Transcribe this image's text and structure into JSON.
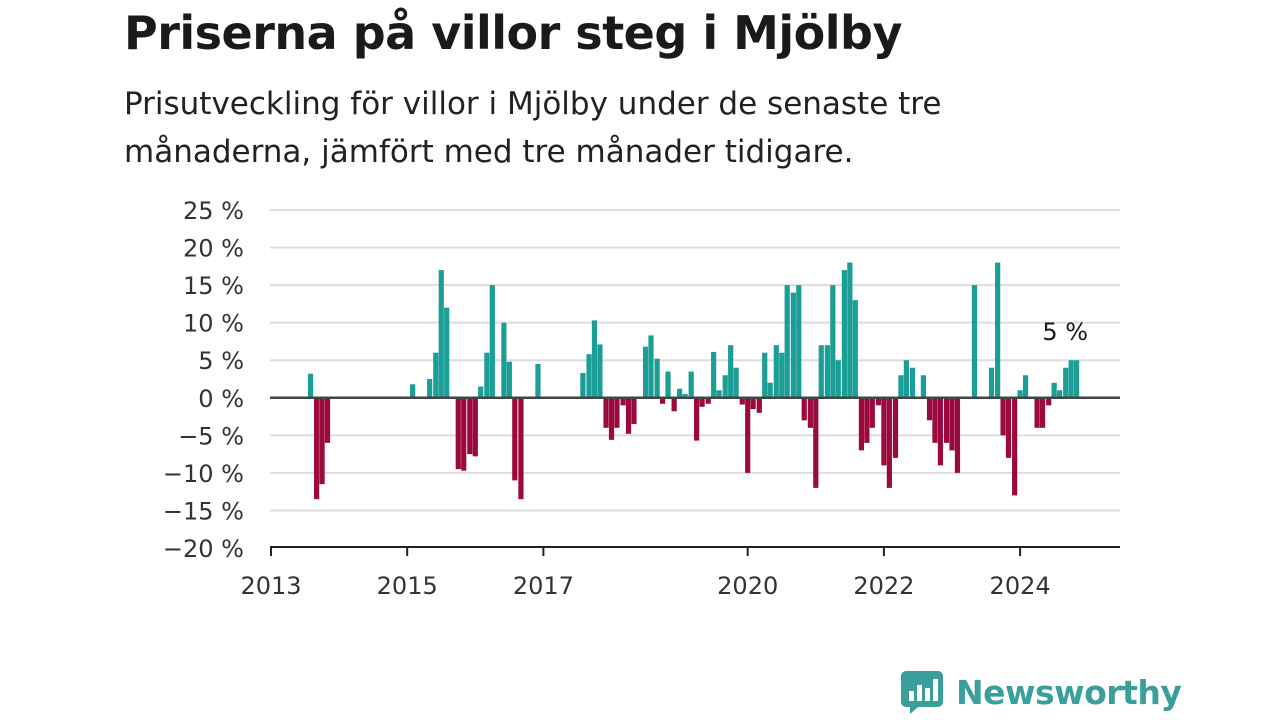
{
  "header": {
    "title": "Priserna på villor steg i Mjölby",
    "subtitle": "Prisutveckling för villor i Mjölby under de senaste tre månaderna, jämfört med tre månader tidigare."
  },
  "brand": {
    "name": "Newsworthy",
    "logo_icon": "bar-chart-speech-bubble-icon",
    "color": "#3a9f9a"
  },
  "chart_data": {
    "type": "bar",
    "title": "Priserna på villor steg i Mjölby",
    "subtitle": "Prisutveckling för villor i Mjölby under de senaste tre månaderna, jämfört med tre månader tidigare.",
    "xlabel": "",
    "ylabel": "",
    "ylim": [
      -20,
      25
    ],
    "y_ticks": [
      25,
      20,
      15,
      10,
      5,
      0,
      -5,
      -10,
      -15,
      -20
    ],
    "y_tick_labels": [
      "25 %",
      "20 %",
      "15 %",
      "10 %",
      "5 %",
      "0 %",
      "−5 %",
      "−10 %",
      "−15 %",
      "−20 %"
    ],
    "x_ticks": [
      2013,
      2015,
      2017,
      2020,
      2022,
      2024
    ],
    "x_tick_labels": [
      "2013",
      "2015",
      "2017",
      "2020",
      "2022",
      "2024"
    ],
    "x_unit": "year",
    "grid": true,
    "colors": {
      "positive": "#1a9e96",
      "negative": "#9b0a3e",
      "grid": "#dddddd",
      "axis": "#444444"
    },
    "annotation": {
      "text": "5 %",
      "x": 2024.75,
      "y": 5
    },
    "bars": [
      {
        "x": 2013.58,
        "y": 3.2
      },
      {
        "x": 2013.67,
        "y": -13.5
      },
      {
        "x": 2013.75,
        "y": -11.5
      },
      {
        "x": 2013.83,
        "y": -6.0
      },
      {
        "x": 2015.08,
        "y": 1.8
      },
      {
        "x": 2015.33,
        "y": 2.5
      },
      {
        "x": 2015.42,
        "y": 6.0
      },
      {
        "x": 2015.5,
        "y": 17.0
      },
      {
        "x": 2015.58,
        "y": 12.0
      },
      {
        "x": 2015.75,
        "y": -9.5
      },
      {
        "x": 2015.83,
        "y": -9.7
      },
      {
        "x": 2015.92,
        "y": -7.5
      },
      {
        "x": 2016.0,
        "y": -7.8
      },
      {
        "x": 2016.08,
        "y": 1.5
      },
      {
        "x": 2016.17,
        "y": 6.0
      },
      {
        "x": 2016.25,
        "y": 15.0
      },
      {
        "x": 2016.42,
        "y": 10.0
      },
      {
        "x": 2016.5,
        "y": 4.8
      },
      {
        "x": 2016.58,
        "y": -11.0
      },
      {
        "x": 2016.67,
        "y": -13.5
      },
      {
        "x": 2016.92,
        "y": 4.5
      },
      {
        "x": 2017.58,
        "y": 3.3
      },
      {
        "x": 2017.67,
        "y": 5.8
      },
      {
        "x": 2017.75,
        "y": 10.3
      },
      {
        "x": 2017.83,
        "y": 7.1
      },
      {
        "x": 2017.92,
        "y": -4.0
      },
      {
        "x": 2018.0,
        "y": -5.6
      },
      {
        "x": 2018.08,
        "y": -4.0
      },
      {
        "x": 2018.17,
        "y": -1.0
      },
      {
        "x": 2018.25,
        "y": -4.8
      },
      {
        "x": 2018.33,
        "y": -3.5
      },
      {
        "x": 2018.5,
        "y": 6.8
      },
      {
        "x": 2018.58,
        "y": 8.3
      },
      {
        "x": 2018.67,
        "y": 5.2
      },
      {
        "x": 2018.75,
        "y": -0.8
      },
      {
        "x": 2018.83,
        "y": 3.5
      },
      {
        "x": 2018.92,
        "y": -1.8
      },
      {
        "x": 2019.0,
        "y": 1.2
      },
      {
        "x": 2019.08,
        "y": 0.5
      },
      {
        "x": 2019.17,
        "y": 3.5
      },
      {
        "x": 2019.25,
        "y": -5.7
      },
      {
        "x": 2019.33,
        "y": -1.2
      },
      {
        "x": 2019.42,
        "y": -0.8
      },
      {
        "x": 2019.5,
        "y": 6.1
      },
      {
        "x": 2019.58,
        "y": 1.0
      },
      {
        "x": 2019.67,
        "y": 3.0
      },
      {
        "x": 2019.75,
        "y": 7.0
      },
      {
        "x": 2019.83,
        "y": 4.0
      },
      {
        "x": 2019.92,
        "y": -0.9
      },
      {
        "x": 2020.0,
        "y": -10.0
      },
      {
        "x": 2020.08,
        "y": -1.5
      },
      {
        "x": 2020.17,
        "y": -2.0
      },
      {
        "x": 2020.25,
        "y": 6.0
      },
      {
        "x": 2020.33,
        "y": 2.0
      },
      {
        "x": 2020.42,
        "y": 7.0
      },
      {
        "x": 2020.5,
        "y": 6.0
      },
      {
        "x": 2020.58,
        "y": 15.0
      },
      {
        "x": 2020.67,
        "y": 14.0
      },
      {
        "x": 2020.75,
        "y": 15.0
      },
      {
        "x": 2020.83,
        "y": -3.0
      },
      {
        "x": 2020.92,
        "y": -4.0
      },
      {
        "x": 2021.0,
        "y": -12.0
      },
      {
        "x": 2021.08,
        "y": 7.0
      },
      {
        "x": 2021.17,
        "y": 7.0
      },
      {
        "x": 2021.25,
        "y": 15.0
      },
      {
        "x": 2021.33,
        "y": 5.0
      },
      {
        "x": 2021.42,
        "y": 17.0
      },
      {
        "x": 2021.5,
        "y": 18.0
      },
      {
        "x": 2021.58,
        "y": 13.0
      },
      {
        "x": 2021.67,
        "y": -7.0
      },
      {
        "x": 2021.75,
        "y": -6.0
      },
      {
        "x": 2021.83,
        "y": -4.0
      },
      {
        "x": 2021.92,
        "y": -1.0
      },
      {
        "x": 2022.0,
        "y": -9.0
      },
      {
        "x": 2022.08,
        "y": -12.0
      },
      {
        "x": 2022.17,
        "y": -8.0
      },
      {
        "x": 2022.25,
        "y": 3.0
      },
      {
        "x": 2022.33,
        "y": 5.0
      },
      {
        "x": 2022.42,
        "y": 4.0
      },
      {
        "x": 2022.58,
        "y": 3.0
      },
      {
        "x": 2022.67,
        "y": -3.0
      },
      {
        "x": 2022.75,
        "y": -6.0
      },
      {
        "x": 2022.83,
        "y": -9.0
      },
      {
        "x": 2022.92,
        "y": -6.0
      },
      {
        "x": 2023.0,
        "y": -7.0
      },
      {
        "x": 2023.08,
        "y": -10.0
      },
      {
        "x": 2023.33,
        "y": 15.0
      },
      {
        "x": 2023.58,
        "y": 4.0
      },
      {
        "x": 2023.67,
        "y": 18.0
      },
      {
        "x": 2023.75,
        "y": -5.0
      },
      {
        "x": 2023.83,
        "y": -8.0
      },
      {
        "x": 2023.92,
        "y": -13.0
      },
      {
        "x": 2024.0,
        "y": 1.0
      },
      {
        "x": 2024.08,
        "y": 3.0
      },
      {
        "x": 2024.25,
        "y": -4.0
      },
      {
        "x": 2024.33,
        "y": -4.0
      },
      {
        "x": 2024.42,
        "y": -1.0
      },
      {
        "x": 2024.5,
        "y": 2.0
      },
      {
        "x": 2024.58,
        "y": 1.0
      },
      {
        "x": 2024.67,
        "y": 4.0
      },
      {
        "x": 2024.75,
        "y": 5.0
      },
      {
        "x": 2024.83,
        "y": 5.0
      }
    ]
  }
}
